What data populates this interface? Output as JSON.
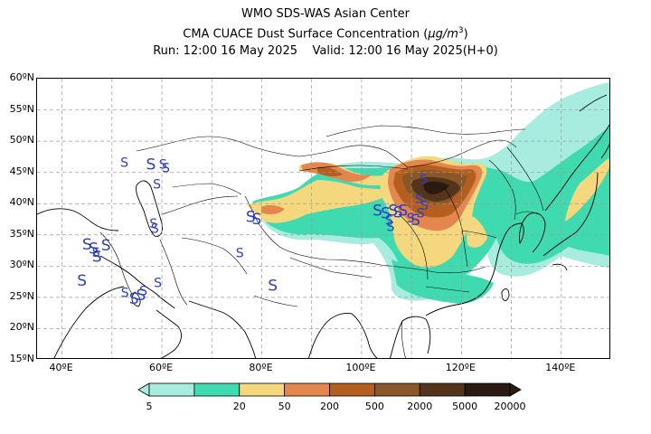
{
  "title": {
    "line1": "WMO SDS-WAS Asian Center",
    "line2_prefix": "CMA CUACE Dust Surface Concentration (",
    "line2_unit_base": "μg/m",
    "line2_unit_exp": "3",
    "line2_suffix": ")",
    "line3": "Run: 12:00 16 May 2025    Valid: 12:00 16 May 2025(H+0)"
  },
  "map": {
    "lon_range": [
      35,
      150
    ],
    "lat_range": [
      15,
      60
    ],
    "lat_ticks": [
      "15ºN",
      "20ºN",
      "25ºN",
      "30ºN",
      "35ºN",
      "40ºN",
      "45ºN",
      "50ºN",
      "55ºN",
      "60ºN"
    ],
    "lon_ticks": [
      "40ºE",
      "60ºE",
      "80ºE",
      "100ºE",
      "120ºE",
      "140ºE"
    ],
    "gridlines": "dashed",
    "station_symbol": "S",
    "station_color": "#2a3fc4",
    "stations": [
      {
        "lon": 52.5,
        "lat": 46.5,
        "size": "small"
      },
      {
        "lon": 57.8,
        "lat": 46.2,
        "size": "large"
      },
      {
        "lon": 60.2,
        "lat": 46.2,
        "size": "small"
      },
      {
        "lon": 60.8,
        "lat": 45.6,
        "size": "small"
      },
      {
        "lon": 59.0,
        "lat": 43.0,
        "size": "small"
      },
      {
        "lon": 58.3,
        "lat": 36.7,
        "size": "small"
      },
      {
        "lon": 58.6,
        "lat": 35.9,
        "size": "small"
      },
      {
        "lon": 45.0,
        "lat": 33.4,
        "size": "large"
      },
      {
        "lon": 46.3,
        "lat": 32.7,
        "size": "large"
      },
      {
        "lon": 46.8,
        "lat": 32.1,
        "size": "small"
      },
      {
        "lon": 47.0,
        "lat": 31.4,
        "size": "large"
      },
      {
        "lon": 48.8,
        "lat": 33.2,
        "size": "large"
      },
      {
        "lon": 44.0,
        "lat": 27.6,
        "size": "large"
      },
      {
        "lon": 54.4,
        "lat": 24.7,
        "size": "large"
      },
      {
        "lon": 55.8,
        "lat": 25.3,
        "size": "large"
      },
      {
        "lon": 56.3,
        "lat": 25.9,
        "size": "small"
      },
      {
        "lon": 59.2,
        "lat": 27.2,
        "size": "small"
      },
      {
        "lon": 52.6,
        "lat": 25.6,
        "size": "small"
      },
      {
        "lon": 77.8,
        "lat": 37.8,
        "size": "large"
      },
      {
        "lon": 79.0,
        "lat": 37.4,
        "size": "large"
      },
      {
        "lon": 75.6,
        "lat": 32.0,
        "size": "small"
      },
      {
        "lon": 82.2,
        "lat": 26.8,
        "size": "large"
      },
      {
        "lon": 103.2,
        "lat": 38.8,
        "size": "large"
      },
      {
        "lon": 104.8,
        "lat": 38.4,
        "size": "large"
      },
      {
        "lon": 105.5,
        "lat": 37.2,
        "size": "small"
      },
      {
        "lon": 106.3,
        "lat": 38.8,
        "size": "large"
      },
      {
        "lon": 107.3,
        "lat": 38.5,
        "size": "large"
      },
      {
        "lon": 108.3,
        "lat": 38.8,
        "size": "large"
      },
      {
        "lon": 109.8,
        "lat": 37.6,
        "size": "small"
      },
      {
        "lon": 110.8,
        "lat": 37.3,
        "size": "large"
      },
      {
        "lon": 111.8,
        "lat": 38.4,
        "size": "small"
      },
      {
        "lon": 112.6,
        "lat": 39.6,
        "size": "small"
      },
      {
        "lon": 111.5,
        "lat": 40.6,
        "size": "small"
      },
      {
        "lon": 112.4,
        "lat": 43.8,
        "size": "small"
      },
      {
        "lon": 105.8,
        "lat": 36.2,
        "size": "small"
      }
    ]
  },
  "colorbar": {
    "colors": [
      "#a8ece0",
      "#40dab0",
      "#f5d77e",
      "#e4874e",
      "#b45f20",
      "#8a5728",
      "#54341a",
      "#2a1a10"
    ],
    "labels": [
      "5",
      "20",
      "50",
      "200",
      "500",
      "2000",
      "5000",
      "20000"
    ]
  }
}
